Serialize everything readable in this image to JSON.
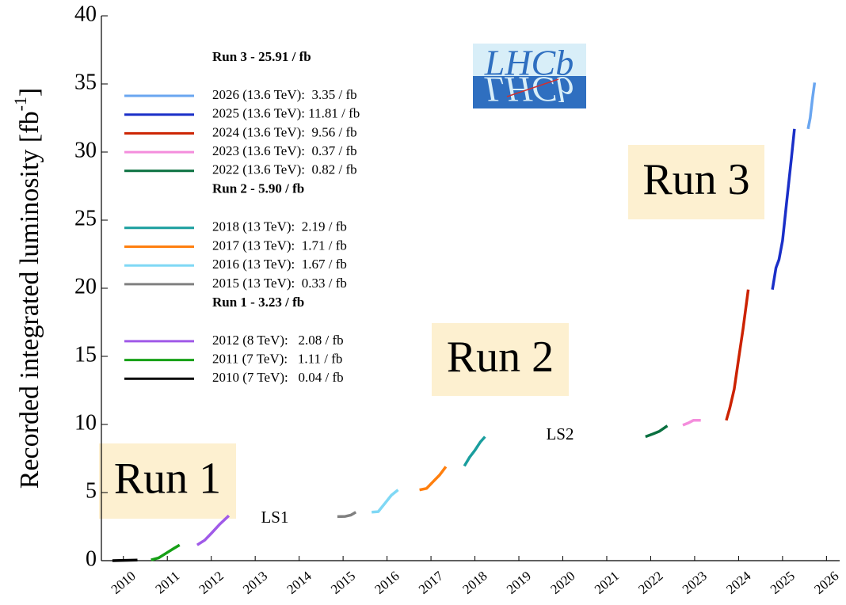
{
  "chart_data": {
    "type": "line",
    "ylabel": "Recorded integrated luminosity [fb",
    "ylabel_sup": "-1",
    "ylabel_end": "]",
    "logo": "LHCb",
    "xlim": [
      2009.5,
      2026.3
    ],
    "xticks": [
      2010,
      2011,
      2012,
      2013,
      2014,
      2015,
      2016,
      2017,
      2018,
      2019,
      2020,
      2021,
      2022,
      2023,
      2024,
      2025,
      2026
    ],
    "ylim": [
      0,
      40
    ],
    "yticks": [
      0,
      5,
      10,
      15,
      20,
      25,
      30,
      35,
      40
    ],
    "annotations": [
      "Run 1",
      "Run 2",
      "Run 3",
      "LS1",
      "LS2"
    ],
    "series": [
      {
        "legend_title": "Run 3 - 25.91 / fb",
        "name": "2026 (13.6 TeV):  3.35 / fb",
        "color": "#6aa6f0",
        "x": [
          2025.58,
          2025.63,
          2025.68,
          2025.73
        ],
        "values": [
          31.7,
          32.5,
          33.9,
          35.1
        ]
      },
      {
        "name": "2025 (13.6 TeV): 11.81 / fb",
        "color": "#1a2fc8",
        "x": [
          2024.77,
          2024.85,
          2024.92,
          2025.0,
          2025.1,
          2025.2,
          2025.27
        ],
        "values": [
          19.9,
          21.5,
          22.1,
          23.5,
          26.5,
          29.5,
          31.7
        ]
      },
      {
        "name": "2024 (13.6 TeV):  9.56 / fb",
        "color": "#cc2200",
        "x": [
          2023.72,
          2023.8,
          2023.9,
          2024.0,
          2024.1,
          2024.22
        ],
        "values": [
          10.3,
          11.2,
          12.6,
          14.8,
          17.0,
          19.9
        ]
      },
      {
        "name": "2023 (13.6 TeV):  0.37 / fb",
        "color": "#f48ddc",
        "x": [
          2022.73,
          2022.85,
          2022.97,
          2023.14
        ],
        "values": [
          9.95,
          10.1,
          10.3,
          10.3
        ]
      },
      {
        "name": "2022 (13.6 TeV):  0.82 / fb",
        "color": "#0a7040",
        "x": [
          2021.88,
          2022.05,
          2022.2,
          2022.38
        ],
        "values": [
          9.1,
          9.3,
          9.5,
          9.9
        ]
      },
      {
        "legend_title": "Run 2 - 5.90 / fb",
        "name": "2018 (13 TeV):  2.19 / fb",
        "color": "#1a9e9e",
        "x": [
          2017.76,
          2017.88,
          2018.0,
          2018.12,
          2018.23
        ],
        "values": [
          6.95,
          7.6,
          8.1,
          8.7,
          9.1
        ]
      },
      {
        "name": "2017 (13 TeV):  1.71 / fb",
        "color": "#ff7f0e",
        "x": [
          2016.74,
          2016.9,
          2017.05,
          2017.2,
          2017.34
        ],
        "values": [
          5.2,
          5.3,
          5.8,
          6.3,
          6.9
        ]
      },
      {
        "name": "2016 (13 TeV):  1.67 / fb",
        "color": "#7fd8f5",
        "x": [
          2015.65,
          2015.8,
          2015.95,
          2016.1,
          2016.25
        ],
        "values": [
          3.56,
          3.6,
          4.2,
          4.8,
          5.2
        ]
      },
      {
        "name": "2015 (13 TeV):  0.33 / fb",
        "color": "#808080",
        "x": [
          2014.87,
          2015.05,
          2015.18,
          2015.29
        ],
        "values": [
          3.23,
          3.25,
          3.35,
          3.56
        ]
      },
      {
        "legend_title": "Run 1 - 3.23 / fb",
        "name": "2012 (8 TeV):   2.08 / fb",
        "color": "#a05ae8",
        "x": [
          2011.68,
          2011.85,
          2012.0,
          2012.2,
          2012.4
        ],
        "values": [
          1.15,
          1.5,
          2.0,
          2.7,
          3.3
        ]
      },
      {
        "name": "2011 (7 TeV):   1.11 / fb",
        "color": "#16a016",
        "x": [
          2010.63,
          2010.8,
          2011.0,
          2011.15,
          2011.28
        ],
        "values": [
          0.05,
          0.2,
          0.6,
          0.9,
          1.15
        ]
      },
      {
        "name": "2010 (7 TeV):   0.04 / fb",
        "color": "#000000",
        "x": [
          2009.75,
          2010.32
        ],
        "values": [
          0,
          0.04
        ]
      }
    ]
  }
}
